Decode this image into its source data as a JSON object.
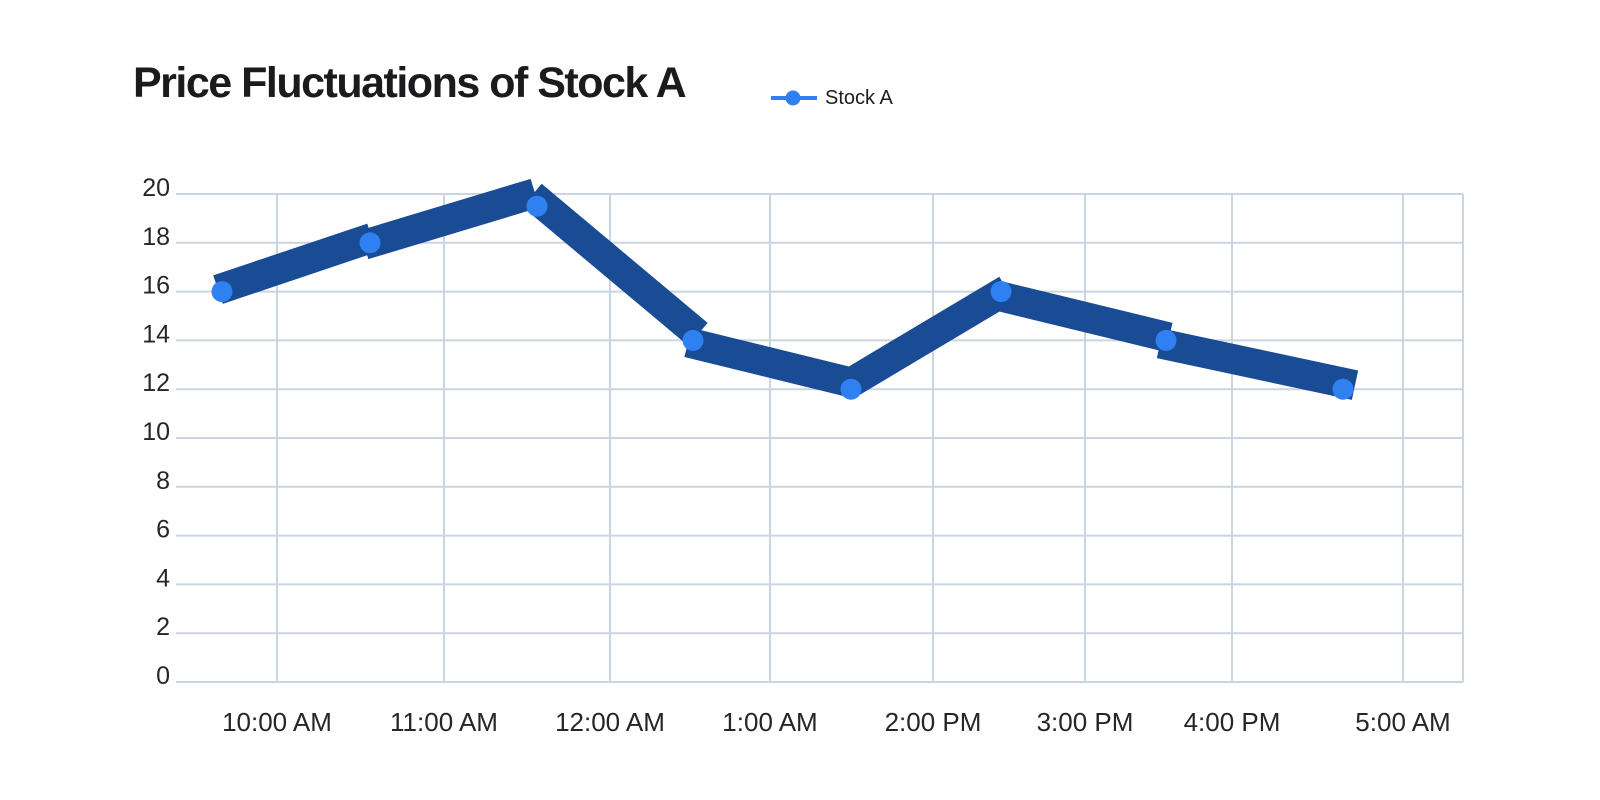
{
  "header": {
    "title": "Price Fluctuations of Stock A"
  },
  "legend": {
    "label": "Stock A"
  },
  "chart_data": {
    "type": "line",
    "title": "Price Fluctuations of Stock A",
    "categories": [
      "10:00 AM",
      "11:00 AM",
      "12:00 AM",
      "1:00 AM",
      "2:00 PM",
      "3:00 PM",
      "4:00 PM",
      "5:00 AM"
    ],
    "series": [
      {
        "name": "Stock A",
        "values": [
          16,
          18,
          19.5,
          14,
          12,
          16,
          14,
          12
        ]
      }
    ],
    "xlabel": "",
    "ylabel": "",
    "ylim": [
      0,
      20
    ],
    "y_ticks": [
      0,
      2,
      4,
      6,
      8,
      10,
      12,
      14,
      16,
      18,
      20
    ],
    "grid": "on",
    "legend_position": "top, right of title",
    "style": "hand-drawn thick marker line with round dots",
    "colors": {
      "line": "#1a4b95",
      "marker": "#2f80f0",
      "grid": "#cbd4e1",
      "tick_text": "#262626",
      "title_text": "#1b1b1d",
      "background": "#ffffff"
    }
  }
}
